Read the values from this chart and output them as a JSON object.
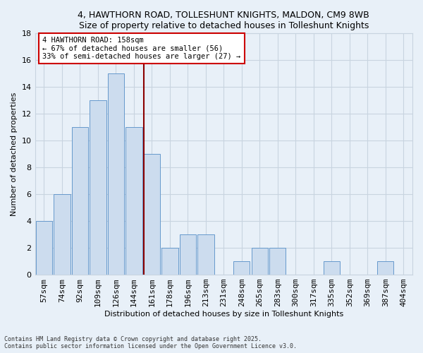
{
  "title": "4, HAWTHORN ROAD, TOLLESHUNT KNIGHTS, MALDON, CM9 8WB",
  "subtitle": "Size of property relative to detached houses in Tolleshunt Knights",
  "xlabel": "Distribution of detached houses by size in Tolleshunt Knights",
  "ylabel": "Number of detached properties",
  "bar_labels": [
    "57sqm",
    "74sqm",
    "92sqm",
    "109sqm",
    "126sqm",
    "144sqm",
    "161sqm",
    "178sqm",
    "196sqm",
    "213sqm",
    "231sqm",
    "248sqm",
    "265sqm",
    "283sqm",
    "300sqm",
    "317sqm",
    "335sqm",
    "352sqm",
    "369sqm",
    "387sqm",
    "404sqm"
  ],
  "bar_values": [
    4,
    6,
    11,
    13,
    15,
    11,
    9,
    2,
    3,
    3,
    0,
    1,
    2,
    2,
    0,
    0,
    1,
    0,
    0,
    1,
    0
  ],
  "bar_color": "#ccdcee",
  "bar_edgecolor": "#6699cc",
  "ylim": [
    0,
    18
  ],
  "yticks": [
    0,
    2,
    4,
    6,
    8,
    10,
    12,
    14,
    16,
    18
  ],
  "vline_color": "#8b0000",
  "annotation_title": "4 HAWTHORN ROAD: 158sqm",
  "annotation_line1": "← 67% of detached houses are smaller (56)",
  "annotation_line2": "33% of semi-detached houses are larger (27) →",
  "annotation_box_edgecolor": "#cc0000",
  "footer_line1": "Contains HM Land Registry data © Crown copyright and database right 2025.",
  "footer_line2": "Contains public sector information licensed under the Open Government Licence v3.0.",
  "bg_color": "#e8f0f8",
  "plot_bg_color": "#e8f0f8",
  "grid_color": "#c8d4e0"
}
